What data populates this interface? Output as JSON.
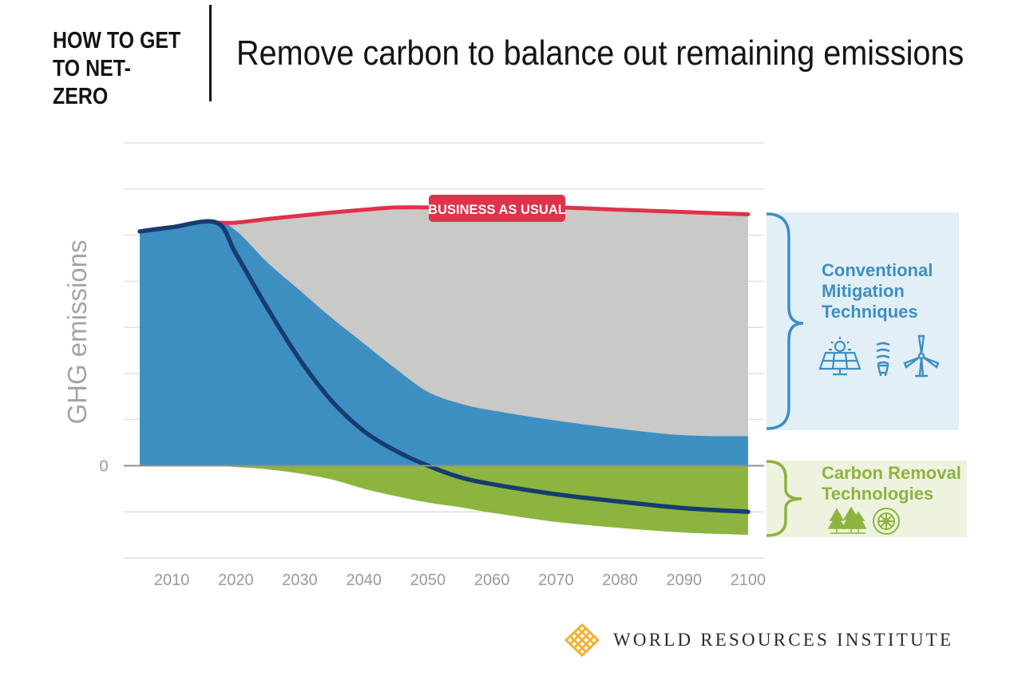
{
  "header": {
    "kicker_line1": "HOW TO GET",
    "kicker_line2": "TO NET-ZERO",
    "title": "Remove carbon to balance out remaining emissions"
  },
  "footer": {
    "organization": "WORLD RESOURCES INSTITUTE"
  },
  "colors": {
    "business_as_usual": "#e0324a",
    "mitigation": "#3d8fc2",
    "gap_to_bau": "#c9c9c7",
    "removal": "#8db43f",
    "net_emissions": "#173c6e",
    "mitigation_panel": "#e3eff7",
    "removal_panel": "#eef3df",
    "mitigation_label": "#3d8fc2",
    "removal_label": "#8db43f",
    "logo_accent": "#f2b233"
  },
  "chart_data": {
    "type": "area",
    "x": [
      2005,
      2010,
      2017,
      2020,
      2025,
      2030,
      2035,
      2040,
      2045,
      2050,
      2055,
      2060,
      2070,
      2080,
      2090,
      2100
    ],
    "ylabel": "GHG emissions",
    "xlabel": "",
    "xticks": [
      2010,
      2020,
      2030,
      2040,
      2050,
      2060,
      2070,
      2080,
      2090,
      2100
    ],
    "yticks": [
      0
    ],
    "xlim": [
      2002.5,
      2102.5
    ],
    "ylim": [
      -2.0,
      7.0
    ],
    "grid": true,
    "series": [
      {
        "name": "BUSINESS AS USUAL",
        "kind": "line",
        "values": [
          5.08,
          5.17,
          5.27,
          5.27,
          5.35,
          5.42,
          5.49,
          5.55,
          5.6,
          5.6,
          5.6,
          5.6,
          5.6,
          5.55,
          5.5,
          5.45
        ]
      },
      {
        "name": "Conventional Mitigation Techniques",
        "kind": "area",
        "values": [
          5.08,
          5.17,
          5.27,
          5.1,
          4.4,
          3.8,
          3.2,
          2.65,
          2.1,
          1.6,
          1.35,
          1.2,
          0.98,
          0.8,
          0.66,
          0.64
        ]
      },
      {
        "name": "Carbon Removal Technologies",
        "kind": "area",
        "values": [
          0,
          0,
          0,
          -0.03,
          -0.08,
          -0.17,
          -0.3,
          -0.5,
          -0.66,
          -0.8,
          -0.9,
          -1.02,
          -1.22,
          -1.35,
          -1.45,
          -1.5
        ]
      },
      {
        "name": "",
        "kind": "line",
        "values": [
          5.08,
          5.17,
          5.27,
          4.6,
          3.4,
          2.3,
          1.4,
          0.75,
          0.32,
          0.0,
          -0.25,
          -0.4,
          -0.62,
          -0.78,
          -0.92,
          -1.0
        ]
      }
    ],
    "annotations": [
      {
        "text": "BUSINESS AS USUAL"
      },
      {
        "text_lines": [
          "Conventional",
          "Mitigation",
          "Techniques"
        ]
      },
      {
        "text_lines": [
          "Carbon Removal",
          "Technologies"
        ]
      }
    ],
    "icons": {
      "mitigation": [
        "solar-panel-icon",
        "light-bulb-icon",
        "wind-turbine-icon"
      ],
      "removal": [
        "trees-icon",
        "carbon-capture-fan-icon"
      ]
    }
  }
}
